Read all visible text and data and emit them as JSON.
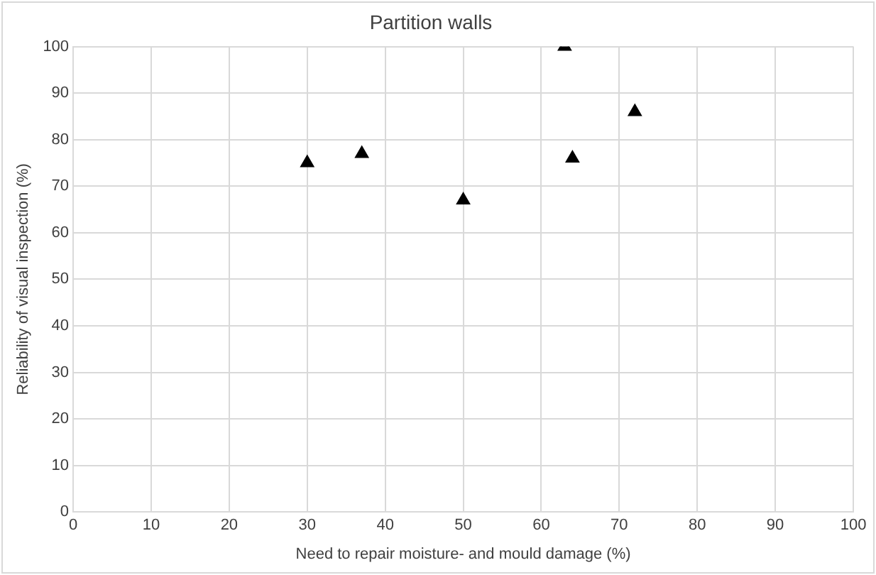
{
  "chart_data": {
    "type": "scatter",
    "title": "Partition walls",
    "xlabel": "Need to repair moisture- and mould damage (%)",
    "ylabel": "Reliability of visual inspection (%)",
    "x": [
      30,
      37,
      50,
      63,
      64,
      72
    ],
    "series": [
      {
        "color": "#000000",
        "values": [
          75,
          77,
          67,
          100,
          76,
          86
        ]
      }
    ],
    "xlim": [
      0,
      100
    ],
    "xticks": [
      0,
      10,
      20,
      30,
      40,
      50,
      60,
      70,
      80,
      90,
      100
    ],
    "ylim": [
      0,
      100
    ],
    "yticks": [
      0,
      10,
      20,
      30,
      40,
      50,
      60,
      70,
      80,
      90,
      100
    ],
    "grid": true,
    "legend": false,
    "marker": "triangle"
  }
}
